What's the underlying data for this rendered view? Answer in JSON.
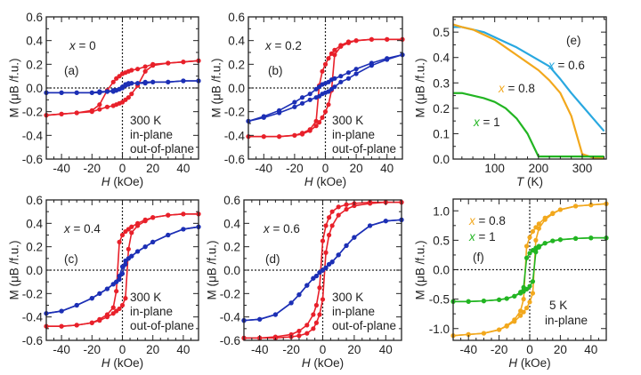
{
  "colors": {
    "in_plane": "#e8202a",
    "out_of_plane": "#1c2fb5",
    "x06": "#29a8e0",
    "x08": "#f2a81d",
    "x1": "#22b522",
    "axis": "#222222"
  },
  "chart_data": [
    {
      "panel": "(a)",
      "type": "line",
      "markers": true,
      "xlabel": "H (kOe)",
      "ylabel": "M (μB /f.u.)",
      "xlim": [
        -50,
        50
      ],
      "ylim": [
        -0.6,
        0.6
      ],
      "x_ticks": [
        -40,
        -20,
        0,
        20,
        40
      ],
      "x_tick_labels": [
        "-40",
        "-20",
        "0",
        "20",
        "40"
      ],
      "y_ticks": [
        -0.6,
        -0.4,
        -0.2,
        0,
        0.2,
        0.4,
        0.6
      ],
      "y_tick_labels": [
        "-0.6",
        "-0.4",
        "-0.2",
        "0.0",
        "0.2",
        "0.4",
        "0.6"
      ],
      "zero_lines": true,
      "annotations": {
        "composition": "x = 0",
        "temperature": "300 K",
        "legend_in_plane": "in-plane",
        "legend_out_of_plane": "out-of-plane"
      },
      "H": [
        -50,
        -40,
        -30,
        -20,
        -15,
        -10,
        -6,
        -4,
        -2,
        0,
        2,
        4,
        6,
        10,
        15,
        20,
        30,
        40,
        50
      ],
      "series": [
        {
          "name": "in-plane",
          "color_key": "in_plane",
          "upper": [
            -0.23,
            -0.22,
            -0.21,
            -0.19,
            -0.14,
            -0.02,
            0.05,
            0.08,
            0.1,
            0.12,
            0.13,
            0.14,
            0.15,
            0.16,
            0.18,
            0.2,
            0.21,
            0.22,
            0.23
          ],
          "lower": [
            -0.23,
            -0.22,
            -0.21,
            -0.2,
            -0.18,
            -0.16,
            -0.15,
            -0.14,
            -0.13,
            -0.12,
            -0.1,
            -0.08,
            -0.05,
            0.02,
            0.14,
            0.19,
            0.21,
            0.22,
            0.23
          ]
        },
        {
          "name": "out-of-plane",
          "color_key": "out_of_plane",
          "upper": [
            -0.04,
            -0.04,
            -0.04,
            -0.04,
            -0.03,
            -0.03,
            -0.02,
            -0.02,
            -0.01,
            0.01,
            0.03,
            0.04,
            0.04,
            0.04,
            0.05,
            0.05,
            0.05,
            0.06,
            0.06
          ],
          "lower": [
            -0.04,
            -0.04,
            -0.04,
            -0.04,
            -0.04,
            -0.03,
            -0.03,
            -0.02,
            -0.01,
            0.0,
            0.02,
            0.03,
            0.04,
            0.04,
            0.04,
            0.05,
            0.05,
            0.06,
            0.06
          ]
        }
      ]
    },
    {
      "panel": "(b)",
      "type": "line",
      "markers": true,
      "xlabel": "H (kOe)",
      "ylabel": "M (μB /f.u.)",
      "xlim": [
        -50,
        50
      ],
      "ylim": [
        -0.6,
        0.6
      ],
      "x_ticks": [
        -40,
        -20,
        0,
        20,
        40
      ],
      "x_tick_labels": [
        "-40",
        "-20",
        "0",
        "20",
        "40"
      ],
      "y_ticks": [
        -0.6,
        -0.4,
        -0.2,
        0,
        0.2,
        0.4,
        0.6
      ],
      "y_tick_labels": [
        "-0.6",
        "-0.4",
        "-0.2",
        "0.0",
        "0.2",
        "0.4",
        "0.6"
      ],
      "zero_lines": true,
      "annotations": {
        "composition": "x = 0.2",
        "temperature": "300 K",
        "legend_in_plane": "in-plane",
        "legend_out_of_plane": "out-of-plane"
      },
      "H": [
        -50,
        -40,
        -30,
        -20,
        -15,
        -10,
        -6,
        -4,
        -2,
        0,
        2,
        4,
        6,
        10,
        15,
        20,
        30,
        40,
        50
      ],
      "series": [
        {
          "name": "in-plane",
          "color_key": "in_plane",
          "upper": [
            -0.41,
            -0.41,
            -0.41,
            -0.4,
            -0.38,
            -0.35,
            -0.28,
            0.02,
            0.14,
            0.2,
            0.25,
            0.29,
            0.32,
            0.36,
            0.39,
            0.4,
            0.41,
            0.41,
            0.41
          ],
          "lower": [
            -0.41,
            -0.41,
            -0.41,
            -0.4,
            -0.39,
            -0.36,
            -0.32,
            -0.29,
            -0.25,
            -0.2,
            -0.14,
            -0.02,
            0.28,
            0.35,
            0.38,
            0.4,
            0.41,
            0.41,
            0.41
          ]
        },
        {
          "name": "out-of-plane",
          "color_key": "out_of_plane",
          "upper": [
            -0.28,
            -0.24,
            -0.19,
            -0.12,
            -0.08,
            -0.05,
            -0.01,
            0.01,
            0.03,
            0.04,
            0.05,
            0.07,
            0.08,
            0.1,
            0.13,
            0.16,
            0.21,
            0.25,
            0.28
          ],
          "lower": [
            -0.28,
            -0.25,
            -0.21,
            -0.16,
            -0.13,
            -0.1,
            -0.08,
            -0.07,
            -0.05,
            -0.04,
            -0.03,
            -0.01,
            0.01,
            0.05,
            0.08,
            0.12,
            0.19,
            0.24,
            0.28
          ]
        }
      ]
    },
    {
      "panel": "(e)",
      "type": "line",
      "markers": false,
      "xlabel": "T (K)",
      "ylabel": "M (μB /f.u.)",
      "xlim": [
        5,
        355
      ],
      "ylim": [
        0,
        0.56
      ],
      "x_ticks": [
        100,
        200,
        300
      ],
      "x_tick_labels": [
        "100",
        "200",
        "300"
      ],
      "y_ticks": [
        0,
        0.1,
        0.2,
        0.3,
        0.4,
        0.5
      ],
      "y_tick_labels": [
        "0.0",
        "0.1",
        "0.2",
        "0.3",
        "0.4",
        "0.5"
      ],
      "zero_lines": false,
      "T": [
        5,
        25,
        50,
        75,
        100,
        125,
        150,
        175,
        200,
        225,
        250,
        275,
        300,
        325,
        350
      ],
      "series": [
        {
          "name": "x = 0.6",
          "color_key": "x06",
          "values": [
            0.52,
            0.52,
            0.51,
            0.5,
            0.48,
            0.46,
            0.44,
            0.415,
            0.39,
            0.365,
            0.315,
            0.26,
            0.21,
            0.16,
            0.11
          ]
        },
        {
          "name": "x = 0.8",
          "color_key": "x08",
          "values": [
            0.53,
            0.52,
            0.51,
            0.49,
            0.47,
            0.44,
            0.41,
            0.38,
            0.35,
            0.31,
            0.26,
            0.17,
            0.02,
            0.005,
            0.005
          ]
        },
        {
          "name": "x = 1",
          "color_key": "x1",
          "values": [
            0.26,
            0.26,
            0.25,
            0.24,
            0.225,
            0.2,
            0.16,
            0.1,
            0.01,
            0.01,
            0.01,
            0.01,
            0.01,
            0.01,
            0.01
          ]
        }
      ]
    },
    {
      "panel": "(c)",
      "type": "line",
      "markers": true,
      "xlabel": "H (kOe)",
      "ylabel": "M (μB /f.u.)",
      "xlim": [
        -50,
        50
      ],
      "ylim": [
        -0.6,
        0.6
      ],
      "x_ticks": [
        -40,
        -20,
        0,
        20,
        40
      ],
      "x_tick_labels": [
        "-40",
        "-20",
        "0",
        "20",
        "40"
      ],
      "y_ticks": [
        -0.6,
        -0.4,
        -0.2,
        0,
        0.2,
        0.4,
        0.6
      ],
      "y_tick_labels": [
        "-0.6",
        "-0.4",
        "-0.2",
        "0.0",
        "0.2",
        "0.4",
        "0.6"
      ],
      "zero_lines": true,
      "annotations": {
        "composition": "x = 0.4",
        "temperature": "300 K",
        "legend_in_plane": "in-plane",
        "legend_out_of_plane": "out-of-plane"
      },
      "H": [
        -50,
        -40,
        -30,
        -20,
        -15,
        -10,
        -6,
        -4,
        -2,
        0,
        2,
        4,
        6,
        10,
        15,
        20,
        30,
        40,
        50
      ],
      "series": [
        {
          "name": "in-plane",
          "color_key": "in_plane",
          "upper": [
            -0.48,
            -0.48,
            -0.47,
            -0.45,
            -0.42,
            -0.38,
            -0.32,
            -0.18,
            0.24,
            0.3,
            0.33,
            0.35,
            0.37,
            0.4,
            0.43,
            0.45,
            0.47,
            0.48,
            0.48
          ],
          "lower": [
            -0.48,
            -0.48,
            -0.47,
            -0.45,
            -0.43,
            -0.4,
            -0.37,
            -0.35,
            -0.33,
            -0.3,
            -0.24,
            0.18,
            0.32,
            0.38,
            0.42,
            0.45,
            0.47,
            0.48,
            0.48
          ]
        },
        {
          "name": "out-of-plane",
          "color_key": "out_of_plane",
          "upper": [
            -0.37,
            -0.35,
            -0.3,
            -0.24,
            -0.2,
            -0.16,
            -0.12,
            -0.1,
            -0.05,
            0.03,
            0.08,
            0.1,
            0.12,
            0.16,
            0.2,
            0.24,
            0.3,
            0.35,
            0.37
          ],
          "lower": [
            -0.37,
            -0.35,
            -0.3,
            -0.24,
            -0.2,
            -0.16,
            -0.12,
            -0.1,
            -0.08,
            -0.03,
            0.05,
            0.1,
            0.12,
            0.16,
            0.2,
            0.24,
            0.3,
            0.35,
            0.37
          ]
        }
      ]
    },
    {
      "panel": "(d)",
      "type": "line",
      "markers": true,
      "xlabel": "H (kOe)",
      "ylabel": "M (μB /f.u.)",
      "xlim": [
        -50,
        50
      ],
      "ylim": [
        -0.6,
        0.6
      ],
      "x_ticks": [
        -40,
        -20,
        0,
        20,
        40
      ],
      "x_tick_labels": [
        "-40",
        "-20",
        "0",
        "20",
        "40"
      ],
      "y_ticks": [
        -0.6,
        -0.4,
        -0.2,
        0,
        0.2,
        0.4,
        0.6
      ],
      "y_tick_labels": [
        "-0.6",
        "-0.4",
        "-0.2",
        "0.0",
        "0.2",
        "0.4",
        "0.6"
      ],
      "zero_lines": true,
      "annotations": {
        "composition": "x = 0.6",
        "temperature": "300 K",
        "legend_in_plane": "in-plane",
        "legend_out_of_plane": "out-of-plane"
      },
      "H": [
        -50,
        -40,
        -30,
        -20,
        -15,
        -10,
        -6,
        -4,
        -2,
        0,
        2,
        4,
        6,
        10,
        15,
        20,
        30,
        40,
        50
      ],
      "series": [
        {
          "name": "in-plane",
          "color_key": "in_plane",
          "upper": [
            -0.58,
            -0.58,
            -0.57,
            -0.55,
            -0.52,
            -0.47,
            -0.38,
            -0.3,
            -0.15,
            0.25,
            0.38,
            0.45,
            0.5,
            0.54,
            0.56,
            0.57,
            0.58,
            0.58,
            0.58
          ],
          "lower": [
            -0.58,
            -0.58,
            -0.58,
            -0.57,
            -0.56,
            -0.54,
            -0.5,
            -0.45,
            -0.38,
            -0.25,
            0.15,
            0.3,
            0.38,
            0.47,
            0.52,
            0.55,
            0.57,
            0.58,
            0.58
          ]
        },
        {
          "name": "out-of-plane",
          "color_key": "out_of_plane",
          "upper": [
            -0.43,
            -0.42,
            -0.38,
            -0.28,
            -0.21,
            -0.13,
            -0.07,
            -0.05,
            -0.02,
            0.0,
            0.02,
            0.05,
            0.07,
            0.13,
            0.21,
            0.28,
            0.38,
            0.42,
            0.43
          ],
          "lower": [
            -0.43,
            -0.42,
            -0.38,
            -0.28,
            -0.21,
            -0.13,
            -0.07,
            -0.05,
            -0.02,
            0.0,
            0.02,
            0.05,
            0.07,
            0.13,
            0.21,
            0.28,
            0.38,
            0.42,
            0.43
          ]
        }
      ]
    },
    {
      "panel": "(f)",
      "type": "line",
      "markers": true,
      "xlabel": "H (kOe)",
      "ylabel": "M (μB /f.u.)",
      "xlim": [
        -50,
        50
      ],
      "ylim": [
        -1.2,
        1.2
      ],
      "x_ticks": [
        -40,
        -20,
        0,
        20,
        40
      ],
      "x_tick_labels": [
        "-40",
        "-20",
        "0",
        "20",
        "40"
      ],
      "y_ticks": [
        -1.0,
        -0.5,
        0,
        0.5,
        1.0
      ],
      "y_tick_labels": [
        "-1.0",
        "-0.5",
        "0.0",
        "0.5",
        "1.0"
      ],
      "zero_lines": true,
      "annotations": {
        "temperature": "5 K",
        "orientation": "in-plane"
      },
      "H": [
        -50,
        -40,
        -30,
        -20,
        -15,
        -10,
        -6,
        -4,
        -2,
        0,
        2,
        4,
        6,
        10,
        15,
        20,
        30,
        40,
        50
      ],
      "series": [
        {
          "name": "x = 0.8",
          "color_key": "x08",
          "upper": [
            -1.12,
            -1.1,
            -1.08,
            -1.02,
            -0.95,
            -0.85,
            -0.7,
            -0.5,
            0.4,
            0.55,
            0.65,
            0.72,
            0.78,
            0.88,
            0.96,
            1.02,
            1.08,
            1.1,
            1.12
          ],
          "lower": [
            -1.12,
            -1.1,
            -1.08,
            -1.02,
            -0.96,
            -0.88,
            -0.78,
            -0.72,
            -0.65,
            -0.55,
            -0.4,
            0.5,
            0.7,
            0.85,
            0.95,
            1.02,
            1.08,
            1.1,
            1.12
          ]
        },
        {
          "name": "x = 1",
          "color_key": "x1",
          "upper": [
            -0.54,
            -0.54,
            -0.53,
            -0.51,
            -0.49,
            -0.45,
            -0.38,
            -0.3,
            0.2,
            0.28,
            0.33,
            0.37,
            0.4,
            0.45,
            0.49,
            0.51,
            0.53,
            0.54,
            0.54
          ],
          "lower": [
            -0.54,
            -0.54,
            -0.53,
            -0.51,
            -0.49,
            -0.45,
            -0.4,
            -0.37,
            -0.33,
            -0.28,
            -0.2,
            0.3,
            0.38,
            0.45,
            0.49,
            0.51,
            0.53,
            0.54,
            0.54
          ]
        }
      ]
    }
  ]
}
